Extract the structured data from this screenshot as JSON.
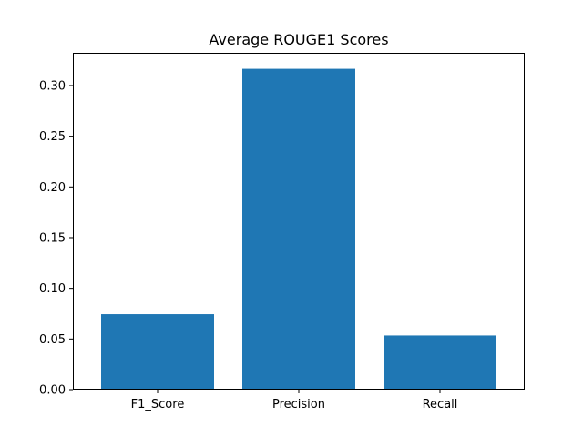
{
  "chart_data": {
    "type": "bar",
    "title": "Average ROUGE1 Scores",
    "xlabel": "",
    "ylabel": "",
    "categories": [
      "F1_Score",
      "Precision",
      "Recall"
    ],
    "values": [
      0.0745,
      0.3165,
      0.0535
    ],
    "ylim": [
      0,
      0.3323
    ],
    "yticks": [
      0.0,
      0.05,
      0.1,
      0.15,
      0.2,
      0.25,
      0.3
    ],
    "ytick_labels": [
      "0.00",
      "0.05",
      "0.10",
      "0.15",
      "0.20",
      "0.25",
      "0.30"
    ],
    "grid": false,
    "legend": "none",
    "bar_color": "#1f77b4"
  }
}
